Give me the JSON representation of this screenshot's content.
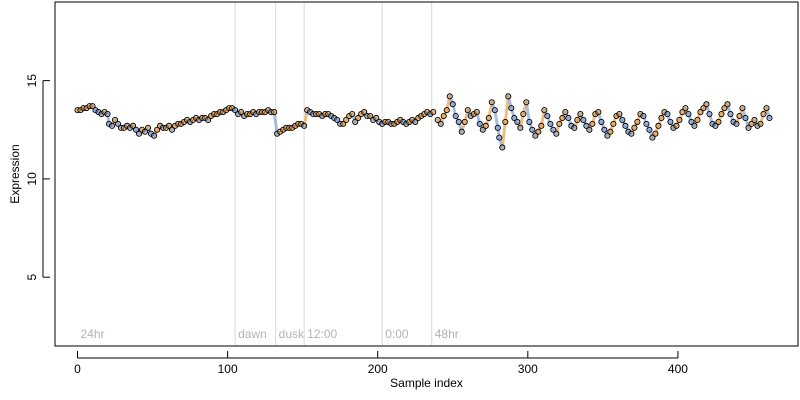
{
  "chart_data": {
    "type": "scatter",
    "title": "",
    "xlabel": "Sample index",
    "ylabel": "Expression",
    "xlim": [
      -15,
      480
    ],
    "ylim": [
      1.5,
      19.0
    ],
    "x_ticks": [
      0,
      100,
      200,
      300,
      400
    ],
    "y_ticks": [
      5,
      10,
      15
    ],
    "grid": false,
    "legend": "none",
    "phase_lines": [
      {
        "x": 105,
        "label": "dawn"
      },
      {
        "x": 132,
        "label": "dusk"
      },
      {
        "x": 151,
        "label": "12:00"
      },
      {
        "x": 203,
        "label": "0:00"
      },
      {
        "x": 236,
        "label": "48hr"
      }
    ],
    "start_label": "24hr",
    "colors": {
      "point_border": "#000000",
      "orange_series": "#e8a75a",
      "blue_series": "#8aa8d8",
      "phase_line": "#d9d9d9",
      "phase_text": "#b3b3b3"
    },
    "series": [
      {
        "values": [
          [
            0,
            13.5
          ],
          [
            2,
            13.5
          ],
          [
            4,
            13.6
          ],
          [
            6,
            13.6
          ],
          [
            8,
            13.7
          ],
          [
            10,
            13.7
          ],
          [
            12,
            13.5
          ],
          [
            14,
            13.4
          ],
          [
            16,
            13.3
          ],
          [
            18,
            13.4
          ],
          [
            20,
            13.3
          ],
          [
            21,
            12.8
          ],
          [
            23,
            12.7
          ],
          [
            25,
            13.0
          ],
          [
            27,
            12.8
          ],
          [
            29,
            12.6
          ],
          [
            31,
            12.6
          ],
          [
            33,
            12.7
          ],
          [
            35,
            12.6
          ],
          [
            37,
            12.7
          ],
          [
            39,
            12.5
          ],
          [
            41,
            12.3
          ],
          [
            43,
            12.5
          ],
          [
            45,
            12.4
          ],
          [
            47,
            12.6
          ],
          [
            49,
            12.3
          ],
          [
            51,
            12.2
          ],
          [
            53,
            12.5
          ],
          [
            55,
            12.7
          ],
          [
            57,
            12.6
          ],
          [
            59,
            12.6
          ],
          [
            61,
            12.7
          ],
          [
            63,
            12.5
          ],
          [
            65,
            12.7
          ],
          [
            67,
            12.8
          ],
          [
            69,
            12.8
          ],
          [
            71,
            12.9
          ],
          [
            73,
            13.0
          ],
          [
            75,
            12.9
          ],
          [
            77,
            13.0
          ],
          [
            79,
            13.1
          ],
          [
            81,
            13.0
          ],
          [
            83,
            13.1
          ],
          [
            85,
            13.1
          ],
          [
            87,
            13.0
          ],
          [
            89,
            13.2
          ],
          [
            91,
            13.3
          ],
          [
            93,
            13.3
          ],
          [
            95,
            13.4
          ],
          [
            97,
            13.4
          ],
          [
            99,
            13.5
          ],
          [
            101,
            13.6
          ],
          [
            103,
            13.6
          ],
          [
            105,
            13.5
          ],
          [
            107,
            13.3
          ],
          [
            109,
            13.4
          ],
          [
            111,
            13.2
          ],
          [
            113,
            13.3
          ],
          [
            115,
            13.3
          ],
          [
            117,
            13.4
          ],
          [
            119,
            13.3
          ],
          [
            121,
            13.4
          ],
          [
            123,
            13.4
          ],
          [
            125,
            13.4
          ],
          [
            127,
            13.5
          ],
          [
            129,
            13.4
          ],
          [
            131,
            13.4
          ],
          [
            133,
            12.3
          ],
          [
            135,
            12.4
          ],
          [
            137,
            12.5
          ],
          [
            139,
            12.6
          ],
          [
            141,
            12.6
          ],
          [
            143,
            12.6
          ],
          [
            145,
            12.7
          ],
          [
            147,
            12.8
          ],
          [
            149,
            12.8
          ],
          [
            151,
            12.7
          ],
          [
            153,
            13.5
          ],
          [
            155,
            13.4
          ],
          [
            157,
            13.3
          ],
          [
            159,
            13.3
          ],
          [
            161,
            13.3
          ],
          [
            163,
            13.2
          ],
          [
            165,
            13.3
          ],
          [
            167,
            13.3
          ],
          [
            169,
            13.2
          ],
          [
            171,
            13.1
          ],
          [
            173,
            13.0
          ],
          [
            175,
            12.8
          ],
          [
            177,
            12.8
          ],
          [
            179,
            13.0
          ],
          [
            181,
            13.2
          ],
          [
            183,
            13.3
          ],
          [
            185,
            12.9
          ],
          [
            187,
            13.1
          ],
          [
            189,
            13.3
          ],
          [
            191,
            13.4
          ],
          [
            193,
            13.2
          ],
          [
            195,
            13.2
          ],
          [
            197,
            13.0
          ],
          [
            199,
            13.1
          ],
          [
            201,
            12.9
          ],
          [
            203,
            12.8
          ],
          [
            205,
            12.9
          ],
          [
            207,
            12.9
          ],
          [
            209,
            12.8
          ],
          [
            211,
            12.8
          ],
          [
            213,
            12.9
          ],
          [
            215,
            13.0
          ],
          [
            217,
            12.9
          ],
          [
            219,
            12.8
          ],
          [
            221,
            12.9
          ],
          [
            223,
            13.0
          ],
          [
            225,
            12.9
          ],
          [
            227,
            13.1
          ],
          [
            229,
            13.2
          ],
          [
            231,
            13.3
          ],
          [
            233,
            13.4
          ],
          [
            235,
            13.3
          ],
          [
            237,
            13.4
          ]
        ]
      },
      {
        "values": [
          [
            240,
            13.0
          ],
          [
            242,
            12.8
          ],
          [
            244,
            13.2
          ],
          [
            246,
            13.5
          ],
          [
            248,
            14.2
          ],
          [
            250,
            13.8
          ],
          [
            252,
            13.2
          ],
          [
            254,
            12.9
          ],
          [
            256,
            12.4
          ],
          [
            258,
            12.9
          ],
          [
            260,
            13.5
          ],
          [
            262,
            13.2
          ],
          [
            264,
            13.3
          ],
          [
            266,
            13.4
          ],
          [
            268,
            12.8
          ],
          [
            270,
            12.5
          ],
          [
            272,
            12.7
          ],
          [
            274,
            13.1
          ],
          [
            276,
            13.9
          ],
          [
            278,
            13.5
          ],
          [
            280,
            12.6
          ],
          [
            281,
            12.1
          ],
          [
            283,
            11.6
          ],
          [
            285,
            12.9
          ],
          [
            287,
            14.2
          ],
          [
            289,
            13.6
          ],
          [
            291,
            13.1
          ],
          [
            293,
            12.9
          ],
          [
            295,
            12.6
          ],
          [
            297,
            13.3
          ],
          [
            299,
            13.9
          ],
          [
            301,
            12.9
          ],
          [
            303,
            12.5
          ],
          [
            305,
            12.2
          ],
          [
            307,
            12.4
          ],
          [
            309,
            12.7
          ],
          [
            311,
            13.5
          ],
          [
            313,
            13.2
          ],
          [
            315,
            12.8
          ],
          [
            317,
            12.5
          ],
          [
            319,
            12.3
          ],
          [
            321,
            12.8
          ],
          [
            323,
            13.1
          ],
          [
            325,
            13.4
          ],
          [
            327,
            13.1
          ],
          [
            329,
            12.7
          ],
          [
            331,
            12.6
          ],
          [
            333,
            13.0
          ],
          [
            335,
            13.3
          ],
          [
            337,
            13.0
          ],
          [
            339,
            12.7
          ],
          [
            341,
            12.5
          ],
          [
            343,
            12.8
          ],
          [
            345,
            13.3
          ],
          [
            347,
            13.4
          ],
          [
            349,
            12.9
          ],
          [
            351,
            12.5
          ],
          [
            353,
            12.2
          ],
          [
            355,
            12.4
          ],
          [
            357,
            12.8
          ],
          [
            359,
            13.2
          ],
          [
            361,
            13.3
          ],
          [
            363,
            13.0
          ],
          [
            365,
            12.7
          ],
          [
            367,
            12.4
          ],
          [
            369,
            12.3
          ],
          [
            371,
            12.6
          ],
          [
            373,
            12.9
          ],
          [
            375,
            13.3
          ],
          [
            377,
            13.2
          ],
          [
            379,
            12.8
          ],
          [
            381,
            12.5
          ],
          [
            383,
            12.1
          ],
          [
            385,
            12.3
          ],
          [
            387,
            12.7
          ],
          [
            389,
            13.1
          ],
          [
            391,
            13.4
          ],
          [
            393,
            13.3
          ],
          [
            395,
            12.9
          ],
          [
            397,
            12.6
          ],
          [
            399,
            12.7
          ],
          [
            401,
            13.0
          ],
          [
            403,
            13.4
          ],
          [
            405,
            13.6
          ],
          [
            407,
            13.3
          ],
          [
            409,
            12.9
          ],
          [
            411,
            12.7
          ],
          [
            413,
            13.0
          ],
          [
            415,
            13.4
          ],
          [
            417,
            13.6
          ],
          [
            419,
            13.8
          ],
          [
            421,
            13.3
          ],
          [
            423,
            12.8
          ],
          [
            425,
            12.7
          ],
          [
            427,
            12.9
          ],
          [
            429,
            13.3
          ],
          [
            431,
            13.6
          ],
          [
            433,
            13.8
          ],
          [
            435,
            13.3
          ],
          [
            437,
            12.9
          ],
          [
            439,
            12.8
          ],
          [
            441,
            13.2
          ],
          [
            443,
            13.6
          ],
          [
            445,
            13.1
          ],
          [
            447,
            12.6
          ],
          [
            449,
            12.8
          ],
          [
            451,
            13.0
          ],
          [
            453,
            12.7
          ],
          [
            455,
            12.8
          ],
          [
            457,
            13.3
          ],
          [
            459,
            13.6
          ],
          [
            461,
            13.1
          ]
        ]
      }
    ]
  }
}
